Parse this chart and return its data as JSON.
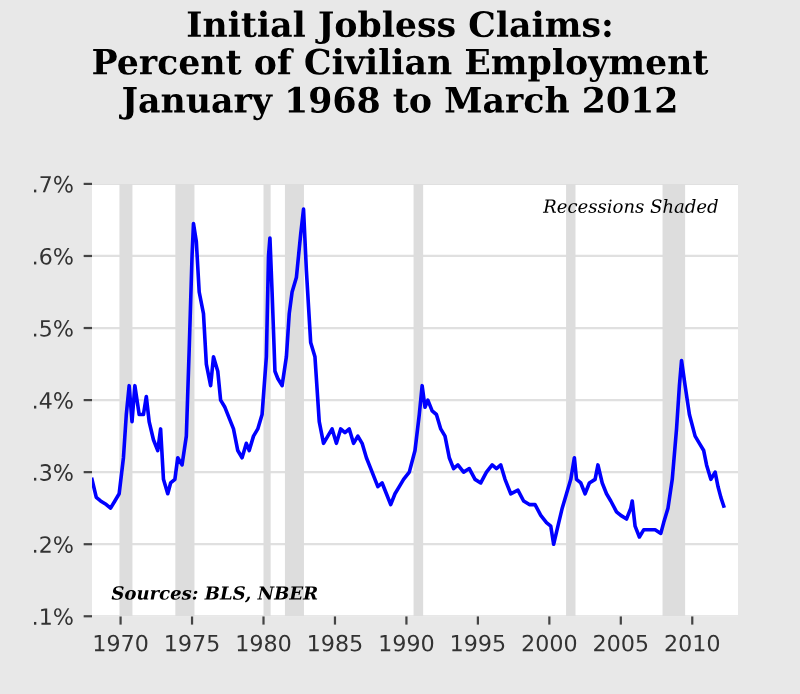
{
  "chart_data": {
    "type": "line",
    "title": "Initial Jobless Claims:\nPercent of Civilian Employment\nJanuary 1968 to March 2012",
    "annotations": [
      "Recessions Shaded",
      "Sources: BLS, NBER"
    ],
    "x": [
      1968.0,
      1968.3,
      1968.6,
      1969.0,
      1969.3,
      1969.6,
      1969.9,
      1970.2,
      1970.4,
      1970.6,
      1970.8,
      1971.0,
      1971.3,
      1971.6,
      1971.8,
      1972.0,
      1972.3,
      1972.6,
      1972.8,
      1973.0,
      1973.3,
      1973.5,
      1973.8,
      1974.0,
      1974.3,
      1974.6,
      1974.8,
      1975.0,
      1975.1,
      1975.3,
      1975.5,
      1975.8,
      1976.0,
      1976.3,
      1976.5,
      1976.8,
      1977.0,
      1977.3,
      1977.6,
      1977.9,
      1978.2,
      1978.5,
      1978.8,
      1979.0,
      1979.3,
      1979.6,
      1979.9,
      1980.2,
      1980.35,
      1980.45,
      1980.6,
      1980.8,
      1981.0,
      1981.3,
      1981.6,
      1981.8,
      1982.0,
      1982.3,
      1982.6,
      1982.8,
      1983.0,
      1983.3,
      1983.6,
      1983.9,
      1984.2,
      1984.5,
      1984.8,
      1985.1,
      1985.4,
      1985.7,
      1986.0,
      1986.3,
      1986.6,
      1986.9,
      1987.2,
      1987.6,
      1988.0,
      1988.3,
      1988.6,
      1988.9,
      1989.2,
      1989.5,
      1989.8,
      1990.2,
      1990.6,
      1990.9,
      1991.1,
      1991.3,
      1991.5,
      1991.8,
      1992.1,
      1992.4,
      1992.7,
      1993.0,
      1993.3,
      1993.6,
      1994.0,
      1994.4,
      1994.8,
      1995.2,
      1995.6,
      1996.0,
      1996.3,
      1996.6,
      1996.9,
      1997.3,
      1997.8,
      1998.2,
      1998.6,
      1999.0,
      1999.4,
      1999.8,
      2000.1,
      2000.3,
      2000.6,
      2000.9,
      2001.2,
      2001.5,
      2001.75,
      2001.9,
      2002.2,
      2002.5,
      2002.8,
      2003.2,
      2003.4,
      2003.7,
      2004.0,
      2004.3,
      2004.7,
      2005.0,
      2005.4,
      2005.7,
      2005.8,
      2006.0,
      2006.3,
      2006.6,
      2007.0,
      2007.4,
      2007.8,
      2008.0,
      2008.3,
      2008.6,
      2008.9,
      2009.1,
      2009.25,
      2009.5,
      2009.8,
      2010.2,
      2010.5,
      2010.8,
      2011.0,
      2011.3,
      2011.6,
      2011.8,
      2012.0,
      2012.2
    ],
    "series": [
      {
        "color": "#0000ff",
        "values": [
          0.29,
          0.265,
          0.26,
          0.255,
          0.25,
          0.26,
          0.27,
          0.32,
          0.38,
          0.42,
          0.37,
          0.42,
          0.38,
          0.38,
          0.405,
          0.37,
          0.345,
          0.33,
          0.36,
          0.29,
          0.27,
          0.285,
          0.29,
          0.32,
          0.31,
          0.35,
          0.47,
          0.6,
          0.645,
          0.62,
          0.55,
          0.52,
          0.45,
          0.42,
          0.46,
          0.44,
          0.4,
          0.39,
          0.375,
          0.36,
          0.33,
          0.32,
          0.34,
          0.33,
          0.35,
          0.36,
          0.38,
          0.46,
          0.6,
          0.625,
          0.55,
          0.44,
          0.43,
          0.42,
          0.46,
          0.52,
          0.55,
          0.57,
          0.63,
          0.665,
          0.58,
          0.48,
          0.46,
          0.37,
          0.34,
          0.35,
          0.36,
          0.34,
          0.36,
          0.355,
          0.36,
          0.34,
          0.35,
          0.34,
          0.32,
          0.3,
          0.28,
          0.285,
          0.27,
          0.255,
          0.27,
          0.28,
          0.29,
          0.3,
          0.33,
          0.38,
          0.42,
          0.39,
          0.4,
          0.385,
          0.38,
          0.36,
          0.35,
          0.32,
          0.305,
          0.31,
          0.3,
          0.305,
          0.29,
          0.285,
          0.3,
          0.31,
          0.305,
          0.31,
          0.29,
          0.27,
          0.275,
          0.26,
          0.255,
          0.255,
          0.24,
          0.23,
          0.225,
          0.2,
          0.225,
          0.25,
          0.27,
          0.29,
          0.32,
          0.29,
          0.285,
          0.27,
          0.285,
          0.29,
          0.31,
          0.285,
          0.27,
          0.26,
          0.245,
          0.24,
          0.235,
          0.25,
          0.26,
          0.225,
          0.21,
          0.22,
          0.22,
          0.22,
          0.215,
          0.23,
          0.25,
          0.29,
          0.36,
          0.42,
          0.455,
          0.42,
          0.38,
          0.35,
          0.34,
          0.33,
          0.31,
          0.29,
          0.3,
          0.28,
          0.265,
          0.253
        ]
      }
    ],
    "xlim": [
      1968,
      2013.2
    ],
    "xticks": [
      1970,
      1975,
      1980,
      1985,
      1990,
      1995,
      2000,
      2005,
      2010
    ],
    "ylim": [
      0.1,
      0.7
    ],
    "yticks": [
      {
        "value": 0.1,
        "label": ".1%"
      },
      {
        "value": 0.2,
        "label": ".2%"
      },
      {
        "value": 0.3,
        "label": ".3%"
      },
      {
        "value": 0.4,
        "label": ".4%"
      },
      {
        "value": 0.5,
        "label": ".5%"
      },
      {
        "value": 0.6,
        "label": ".6%"
      },
      {
        "value": 0.7,
        "label": ".7%"
      }
    ],
    "grid": "y",
    "bands": [
      {
        "axis": "x",
        "from": 1969.92,
        "to": 1970.83,
        "color": "#dddddd"
      },
      {
        "axis": "x",
        "from": 1973.83,
        "to": 1975.17,
        "color": "#dddddd"
      },
      {
        "axis": "x",
        "from": 1980.0,
        "to": 1980.5,
        "color": "#dddddd"
      },
      {
        "axis": "x",
        "from": 1981.5,
        "to": 1982.83,
        "color": "#dddddd"
      },
      {
        "axis": "x",
        "from": 1990.5,
        "to": 1991.17,
        "color": "#dddddd"
      },
      {
        "axis": "x",
        "from": 2001.17,
        "to": 2001.83,
        "color": "#dddddd"
      },
      {
        "axis": "x",
        "from": 2007.92,
        "to": 2009.5,
        "color": "#dddddd"
      }
    ]
  }
}
